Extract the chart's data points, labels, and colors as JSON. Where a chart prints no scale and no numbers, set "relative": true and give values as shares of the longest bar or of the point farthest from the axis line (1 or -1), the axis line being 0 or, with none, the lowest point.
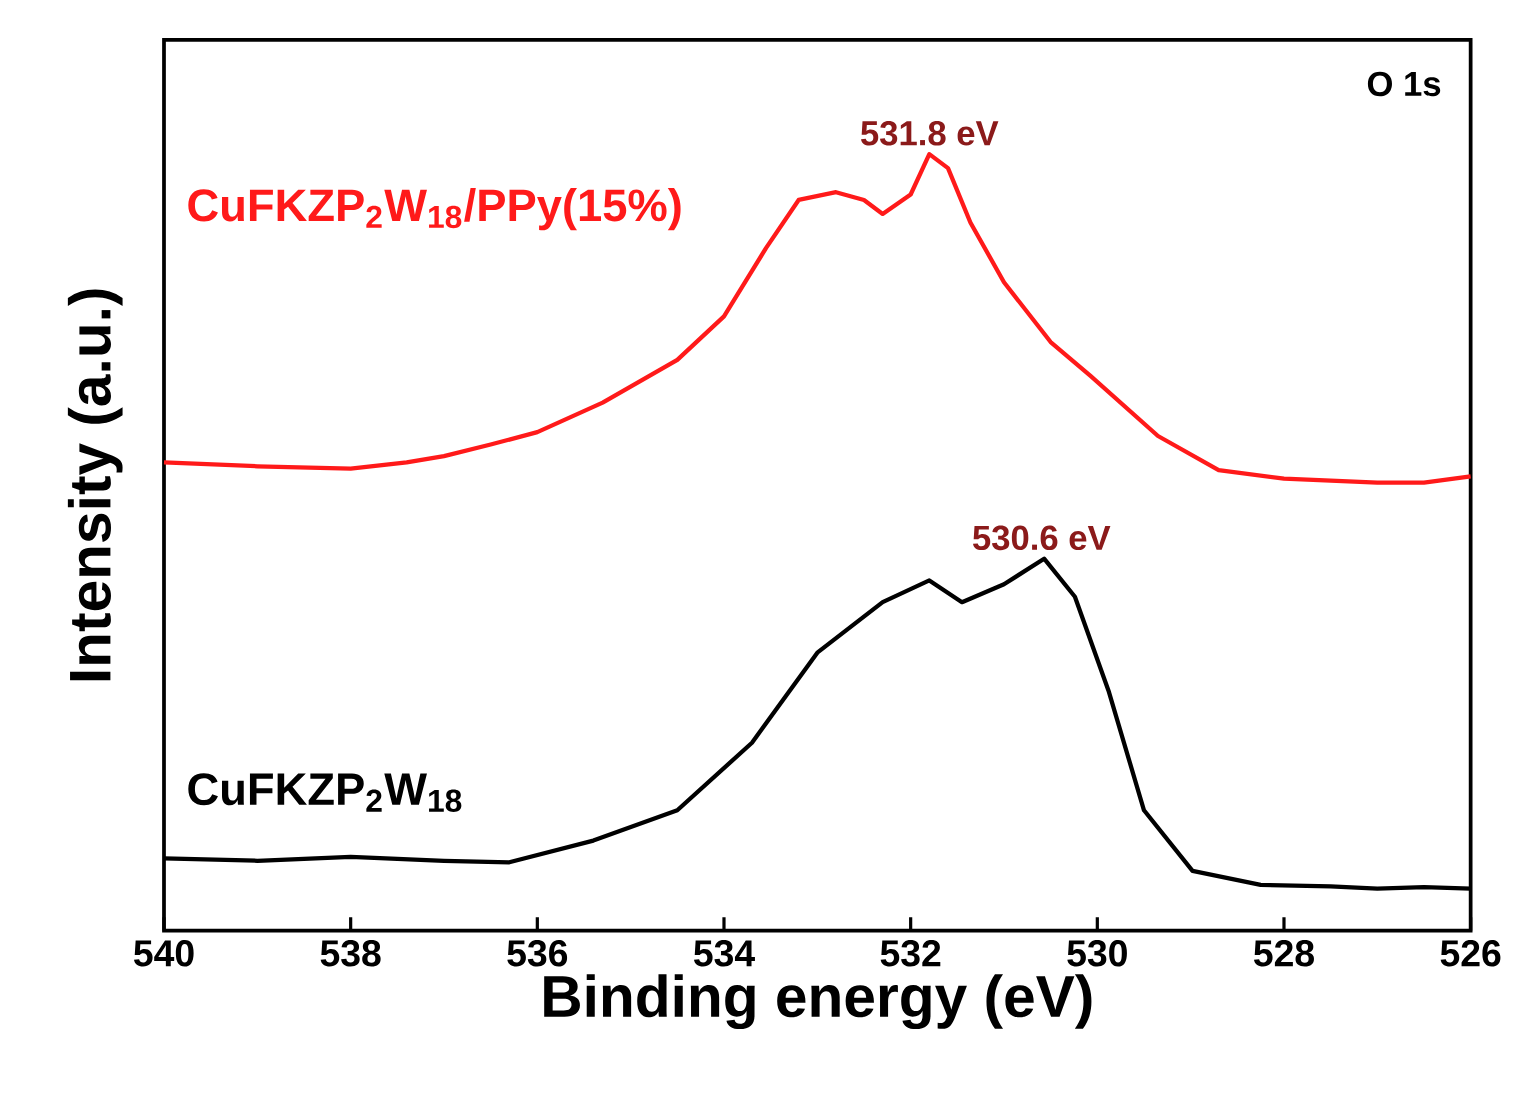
{
  "chart_data": {
    "type": "line",
    "relative": true,
    "xlabel": "Binding energy (eV)",
    "ylabel": "Intensity (a.u.)",
    "xlim": [
      540,
      526
    ],
    "xticks": [
      540,
      538,
      536,
      534,
      532,
      530,
      528,
      526
    ],
    "series": [
      {
        "name": "CuFKZP$_{2}$W$_{18}$/PPy(15%)",
        "color": "#ff1a1a",
        "x": [
          540,
          539,
          538,
          537.4,
          537,
          536.5,
          536,
          535.3,
          534.5,
          534,
          533.55,
          533.2,
          532.8,
          532.5,
          532.3,
          532,
          531.8,
          531.6,
          531.36,
          531,
          530.5,
          530.07,
          529.35,
          528.7,
          528,
          527,
          526.5,
          526
        ],
        "values": [
          0.603,
          0.598,
          0.595,
          0.603,
          0.611,
          0.626,
          0.642,
          0.68,
          0.735,
          0.791,
          0.879,
          0.941,
          0.951,
          0.941,
          0.923,
          0.948,
          1,
          0.982,
          0.912,
          0.835,
          0.758,
          0.714,
          0.637,
          0.593,
          0.582,
          0.577,
          0.577,
          0.585
        ]
      },
      {
        "name": "CuFKZP$_{2}$W$_{18}$",
        "color": "#000000",
        "x": [
          540,
          539,
          538,
          537,
          536.3,
          535.4,
          534.5,
          533.7,
          533,
          532.3,
          531.8,
          531.45,
          531,
          530.57,
          530.24,
          529.88,
          529.5,
          528.98,
          528.25,
          527.5,
          527,
          526.5,
          526
        ],
        "values": [
          0.093,
          0.09,
          0.095,
          0.09,
          0.088,
          0.116,
          0.155,
          0.242,
          0.358,
          0.423,
          0.451,
          0.423,
          0.446,
          0.479,
          0.43,
          0.309,
          0.155,
          0.077,
          0.059,
          0.057,
          0.054,
          0.056,
          0.054
        ]
      }
    ],
    "annotations": [
      {
        "text": "531.8 eV",
        "x": 531.8,
        "y": 1
      },
      {
        "text": "530.6 eV",
        "x": 530.6,
        "y": 0.479
      },
      "O 1s"
    ]
  }
}
